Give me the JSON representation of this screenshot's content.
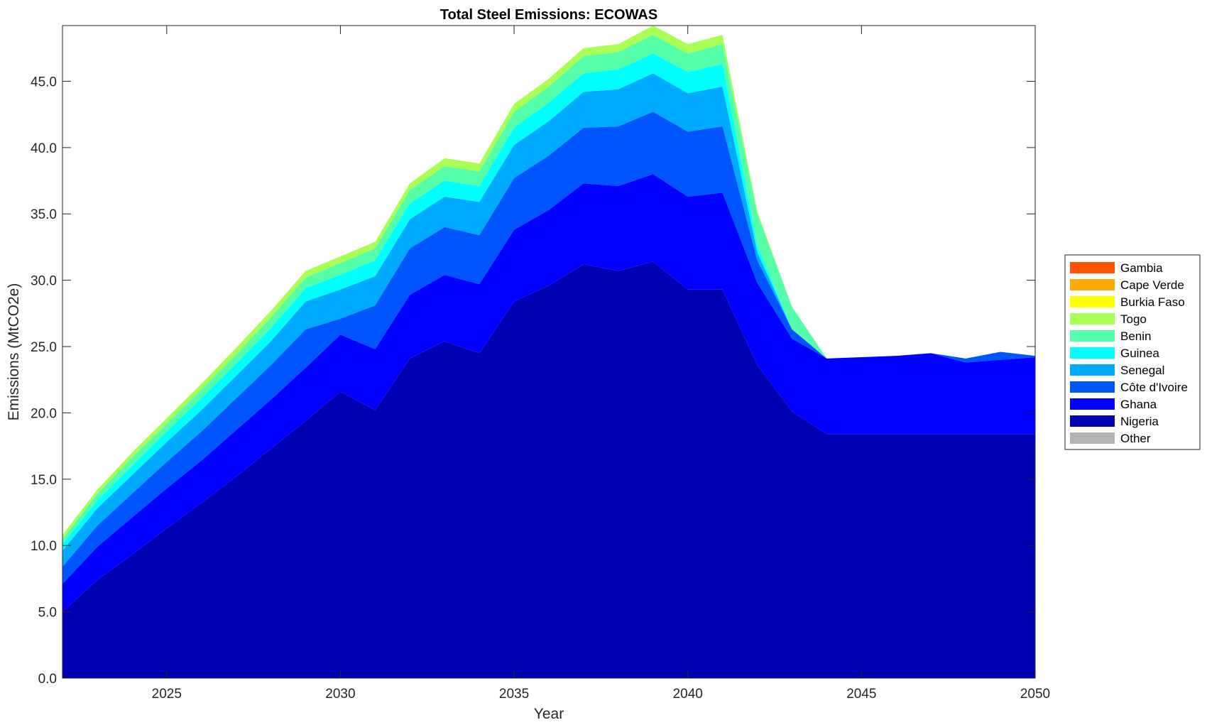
{
  "chart_data": {
    "type": "area",
    "stacked": true,
    "title": "Total Steel Emissions: ECOWAS",
    "xlabel": "Year",
    "ylabel": "Emissions (MtCO2e)",
    "xlim": [
      2022,
      2050
    ],
    "ylim": [
      0,
      49.2
    ],
    "xticks": [
      2025,
      2030,
      2035,
      2040,
      2045,
      2050
    ],
    "yticks": [
      0,
      5,
      10,
      15,
      20,
      25,
      30,
      35,
      40,
      45
    ],
    "xtick_labels": [
      "2025",
      "2030",
      "2035",
      "2040",
      "2045",
      "2050"
    ],
    "ytick_labels": [
      "0.0",
      "5.0",
      "10.0",
      "15.0",
      "20.0",
      "25.0",
      "30.0",
      "35.0",
      "40.0",
      "45.0"
    ],
    "legend_position": "right",
    "x": [
      2022,
      2023,
      2024,
      2025,
      2026,
      2027,
      2028,
      2029,
      2030,
      2031,
      2032,
      2033,
      2034,
      2035,
      2036,
      2037,
      2038,
      2039,
      2040,
      2041,
      2042,
      2043,
      2044,
      2045,
      2046,
      2047,
      2048,
      2049,
      2050
    ],
    "series": [
      {
        "name": "Nigeria",
        "color": "#0000b3",
        "values": [
          5.0,
          7.4,
          9.3,
          11.3,
          13.2,
          15.2,
          17.3,
          19.4,
          21.6,
          20.2,
          24.1,
          25.4,
          24.5,
          28.4,
          29.6,
          31.2,
          30.7,
          31.4,
          29.3,
          29.3,
          23.6,
          20.1,
          18.4,
          18.4,
          18.4,
          18.4,
          18.4,
          18.4,
          18.4
        ]
      },
      {
        "name": "Ghana",
        "color": "#0000ff",
        "values": [
          2.1,
          2.5,
          2.8,
          3.0,
          3.2,
          3.5,
          3.7,
          4.0,
          4.3,
          4.6,
          4.8,
          5.0,
          5.2,
          5.4,
          5.7,
          6.1,
          6.4,
          6.6,
          7.0,
          7.3,
          6.2,
          5.5,
          5.7,
          5.8,
          5.9,
          6.1,
          5.4,
          5.6,
          5.8
        ]
      },
      {
        "name": "Côte d'Ivoire",
        "color": "#0055ff",
        "values": [
          1.3,
          1.6,
          1.8,
          2.0,
          2.2,
          2.4,
          2.6,
          2.9,
          1.2,
          3.3,
          3.5,
          3.6,
          3.7,
          3.9,
          4.1,
          4.2,
          4.5,
          4.7,
          4.9,
          5.0,
          1.7,
          0.7,
          0.0,
          0.0,
          0.0,
          0.0,
          0.3,
          0.6,
          0.1
        ]
      },
      {
        "name": "Senegal",
        "color": "#00aaff",
        "values": [
          1.2,
          1.3,
          1.4,
          1.5,
          1.6,
          1.7,
          1.8,
          2.1,
          2.2,
          2.2,
          2.2,
          2.3,
          2.5,
          2.5,
          2.6,
          2.7,
          2.8,
          2.9,
          2.9,
          3.0,
          0.6,
          0.0,
          0.0,
          0.0,
          0.0,
          0.0,
          0.0,
          0.0,
          0.0
        ]
      },
      {
        "name": "Guinea",
        "color": "#00ffff",
        "values": [
          0.5,
          0.6,
          0.7,
          0.8,
          0.9,
          0.9,
          1.0,
          1.0,
          1.1,
          1.2,
          1.2,
          1.2,
          1.2,
          1.3,
          1.4,
          1.4,
          1.5,
          1.5,
          1.6,
          1.7,
          0.5,
          0.0,
          0.0,
          0.0,
          0.0,
          0.0,
          0.0,
          0.0,
          0.0
        ]
      },
      {
        "name": "Benin",
        "color": "#55ffaa",
        "values": [
          0.4,
          0.5,
          0.6,
          0.6,
          0.7,
          0.7,
          0.8,
          0.8,
          0.9,
          0.9,
          1.0,
          1.1,
          1.1,
          1.2,
          1.2,
          1.3,
          1.3,
          1.4,
          1.4,
          1.5,
          2.4,
          1.7,
          0.0,
          0.0,
          0.0,
          0.0,
          0.0,
          0.0,
          0.0
        ]
      },
      {
        "name": "Togo",
        "color": "#aaff55",
        "values": [
          0.3,
          0.3,
          0.4,
          0.4,
          0.4,
          0.5,
          0.5,
          0.5,
          0.5,
          0.5,
          0.5,
          0.6,
          0.6,
          0.6,
          0.6,
          0.6,
          0.6,
          0.7,
          0.7,
          0.7,
          0.2,
          0.0,
          0.0,
          0.0,
          0.0,
          0.0,
          0.0,
          0.0,
          0.0
        ]
      },
      {
        "name": "Burkia Faso",
        "color": "#ffff00",
        "values": [
          0,
          0,
          0,
          0,
          0,
          0,
          0,
          0,
          0,
          0,
          0,
          0,
          0,
          0,
          0,
          0,
          0,
          0,
          0,
          0,
          0,
          0,
          0,
          0,
          0,
          0,
          0,
          0,
          0
        ]
      },
      {
        "name": "Cape Verde",
        "color": "#ffaa00",
        "values": [
          0,
          0,
          0,
          0,
          0,
          0,
          0,
          0,
          0,
          0,
          0,
          0,
          0,
          0,
          0,
          0,
          0,
          0,
          0,
          0,
          0,
          0,
          0,
          0,
          0,
          0,
          0,
          0,
          0
        ]
      },
      {
        "name": "Gambia",
        "color": "#ff5500",
        "values": [
          0,
          0,
          0,
          0,
          0,
          0,
          0,
          0,
          0,
          0,
          0,
          0,
          0,
          0,
          0,
          0,
          0,
          0,
          0,
          0,
          0,
          0,
          0,
          0,
          0,
          0,
          0,
          0,
          0
        ]
      },
      {
        "name": "Other",
        "color": "#b3b3b3",
        "values": [
          0,
          0,
          0,
          0,
          0,
          0,
          0,
          0,
          0,
          0,
          0,
          0,
          0,
          0,
          0,
          0,
          0,
          0,
          0,
          0,
          0,
          0,
          0,
          0,
          0,
          0,
          0,
          0,
          0
        ]
      }
    ],
    "legend_order": [
      "Gambia",
      "Cape Verde",
      "Burkia Faso",
      "Togo",
      "Benin",
      "Guinea",
      "Senegal",
      "Côte d'Ivoire",
      "Ghana",
      "Nigeria",
      "Other"
    ]
  }
}
